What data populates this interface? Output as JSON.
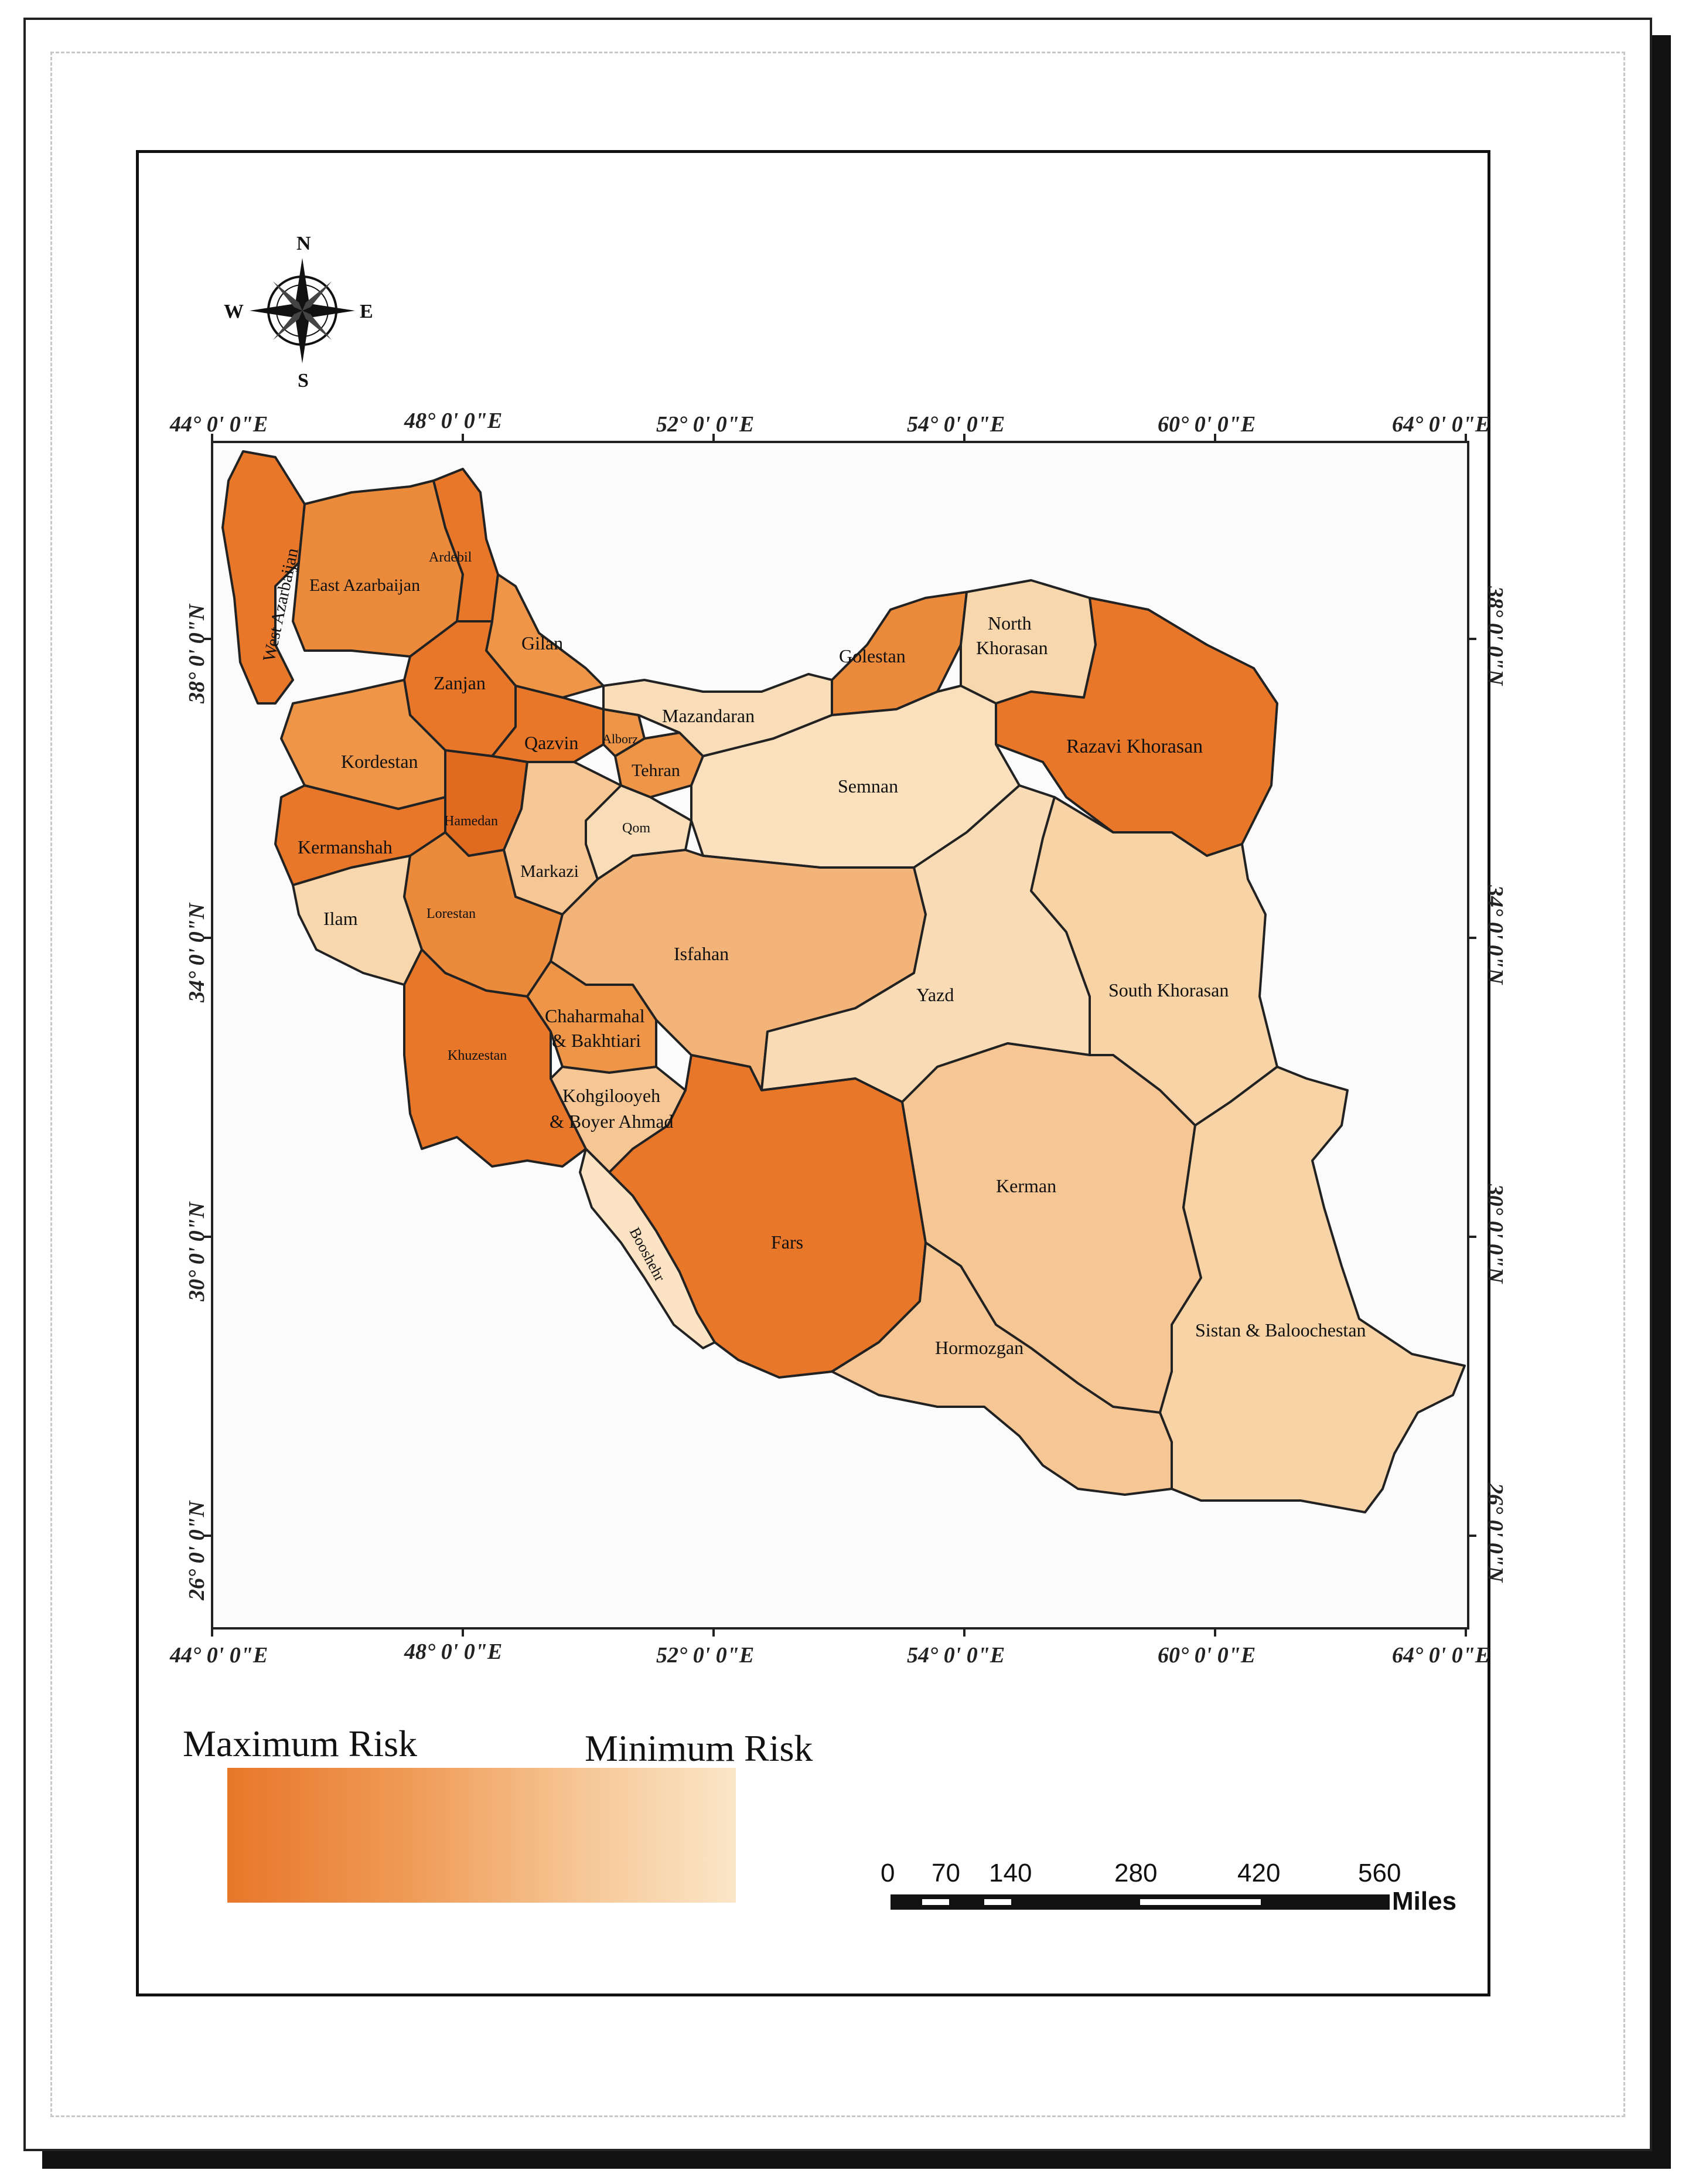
{
  "map": {
    "longitude_ticks_top": [
      "44° 0' 0\"E",
      "48° 0' 0\"E",
      "52° 0' 0\"E",
      "54° 0' 0\"E",
      "60° 0' 0\"E",
      "64° 0' 0\"E"
    ],
    "longitude_ticks_bottom": [
      "44° 0' 0\"E",
      "48° 0' 0\"E",
      "52° 0' 0\"E",
      "54° 0' 0\"E",
      "60° 0' 0\"E",
      "64° 0' 0\"E"
    ],
    "latitude_ticks": [
      "38° 0' 0\"N",
      "34° 0' 0\"N",
      "30° 0' 0\"N",
      "26° 0' 0\"N"
    ],
    "compass": {
      "n": "N",
      "s": "S",
      "e": "E",
      "w": "W"
    },
    "provinces": {
      "west_azarbaijan": "West Azarbaijan",
      "east_azarbaijan": "East Azarbaijan",
      "ardebil": "Ardebil",
      "gilan": "Gilan",
      "zanjan": "Zanjan",
      "qazvin": "Qazvin",
      "alborz": "Alborz",
      "tehran": "Tehran",
      "mazandaran": "Mazandaran",
      "golestan": "Golestan",
      "north_khorasan_1": "North",
      "north_khorasan_2": "Khorasan",
      "razavi_khorasan": "Razavi Khorasan",
      "semnan": "Semnan",
      "kordestan": "Kordestan",
      "hamedan": "Hamedan",
      "kermanshah": "Kermanshah",
      "qom": "Qom",
      "markazi": "Markazi",
      "ilam": "Ilam",
      "lorestan": "Lorestan",
      "isfahan": "Isfahan",
      "yazd": "Yazd",
      "south_khorasan": "South Khorasan",
      "khuzestan": "Khuzestan",
      "chaharmahal_1": "Chaharmahal",
      "chaharmahal_2": "& Bakhtiari",
      "kohgiluyeh_1": "Kohgilooyeh",
      "kohgiluyeh_2": "& Boyer Ahmad",
      "kerman": "Kerman",
      "fars": "Fars",
      "booshehr": "Booshehr",
      "hormozgan": "Hormozgan",
      "sistan": "Sistan & Baloochestan"
    },
    "risk_colors": {
      "max": "#e8772a",
      "high": "#ee9548",
      "mid": "#f3b47a",
      "low": "#f7cfa3",
      "min": "#fbe3c4"
    }
  },
  "legend": {
    "max_label": "Maximum Risk",
    "min_label": "Minimum Risk"
  },
  "scale_bar": {
    "labels": [
      "0",
      "70",
      "140",
      "280",
      "420",
      "560"
    ],
    "unit": "Miles"
  }
}
